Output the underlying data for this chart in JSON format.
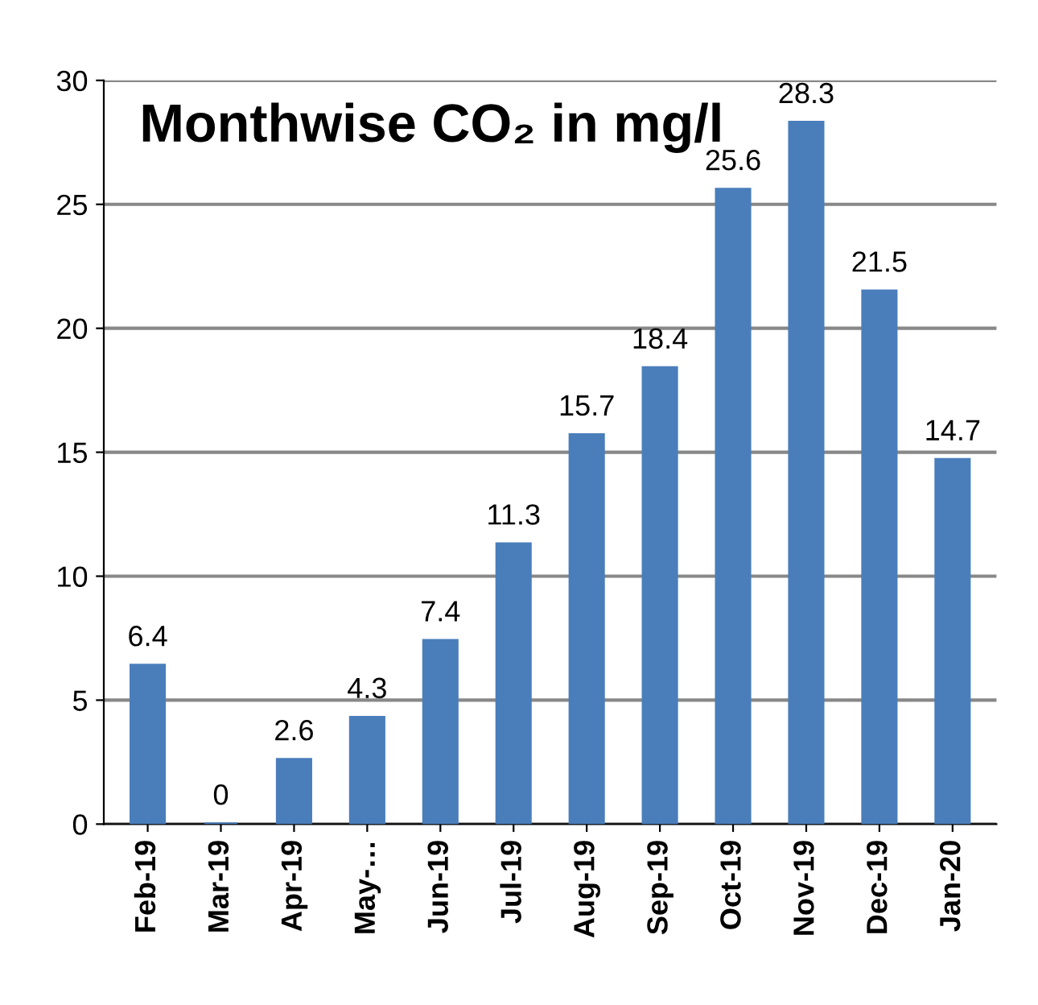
{
  "chart_data": {
    "type": "bar",
    "title": "Monthwise CO₂ in mg/l",
    "categories": [
      "Feb-19",
      "Mar-19",
      "Apr-19",
      "May-…",
      "Jun-19",
      "Jul-19",
      "Aug-19",
      "Sep-19",
      "Oct-19",
      "Nov-19",
      "Dec-19",
      "Jan-20"
    ],
    "values": [
      6.4,
      0,
      2.6,
      4.3,
      7.4,
      11.3,
      15.7,
      18.4,
      25.6,
      28.3,
      21.5,
      14.7
    ],
    "color": "#4a7ebb",
    "ylim": [
      0,
      30
    ],
    "yticks": [
      0,
      5,
      10,
      15,
      20,
      25,
      30
    ],
    "grid": "y",
    "data_labels": true
  }
}
